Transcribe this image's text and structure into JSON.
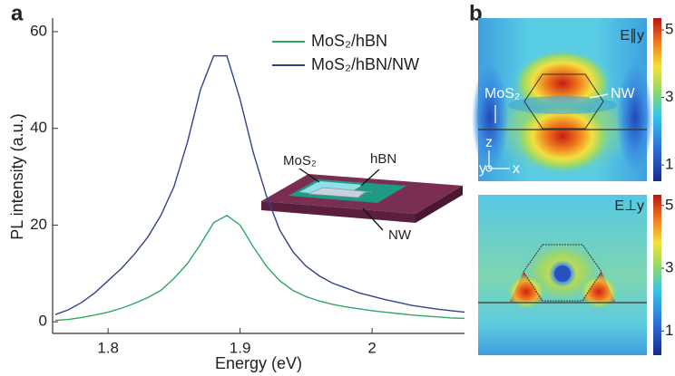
{
  "chart_data": {
    "type": "line",
    "panel_label": "a",
    "xlabel": "Energy (eV)",
    "ylabel": "PL intensity (a.u.)",
    "x": [
      1.76,
      1.77,
      1.78,
      1.79,
      1.8,
      1.81,
      1.82,
      1.83,
      1.84,
      1.85,
      1.86,
      1.87,
      1.88,
      1.89,
      1.9,
      1.91,
      1.92,
      1.93,
      1.94,
      1.95,
      1.96,
      1.97,
      1.98,
      1.99,
      2.0,
      2.01,
      2.02,
      2.03,
      2.04,
      2.05,
      2.06,
      2.07
    ],
    "series": [
      {
        "name": "MoS₂/hBN",
        "color": "#2fa866",
        "values": [
          0.3,
          0.5,
          0.9,
          1.4,
          2,
          2.8,
          3.8,
          5,
          6.5,
          9,
          12,
          16,
          20.5,
          22,
          20,
          15.5,
          11.5,
          8.5,
          6.5,
          5.2,
          4.3,
          3.6,
          3.1,
          2.7,
          2.3,
          2,
          1.7,
          1.4,
          1.2,
          1,
          0.8,
          0.7
        ]
      },
      {
        "name": "MoS₂/hBN/NW",
        "color": "#34418f",
        "values": [
          1.5,
          2.5,
          4,
          6,
          8.5,
          11,
          14,
          17.5,
          22,
          28,
          37,
          48,
          55,
          55,
          46,
          35,
          26,
          19,
          14.5,
          11.5,
          9.5,
          8,
          7,
          6,
          5.3,
          4.6,
          4,
          3.4,
          3,
          2.6,
          2.3,
          2
        ]
      }
    ],
    "xlim": [
      1.758,
      2.07
    ],
    "xticks": [
      1.8,
      1.9,
      {
        "value": 2,
        "label": "2"
      }
    ],
    "ylim": [
      -2.4,
      62.8
    ],
    "yticks": [
      0,
      20,
      40,
      60
    ],
    "legend": "upper-right",
    "annotations": [
      "MoS₂",
      "hBN",
      "NW"
    ]
  },
  "panel_b": {
    "panel_label": "b",
    "maps": [
      {
        "label": "E∥y",
        "colorbar_lim": [
          0.52,
          5.35
        ],
        "colorbar_ticks": [
          1,
          3,
          5
        ],
        "annotations": [
          "MoS₂",
          "NW",
          "z",
          "y",
          "x"
        ]
      },
      {
        "label": "E⊥y",
        "colorbar_lim": [
          0.23,
          5.34
        ],
        "colorbar_ticks": [
          1,
          3,
          5
        ]
      }
    ]
  }
}
